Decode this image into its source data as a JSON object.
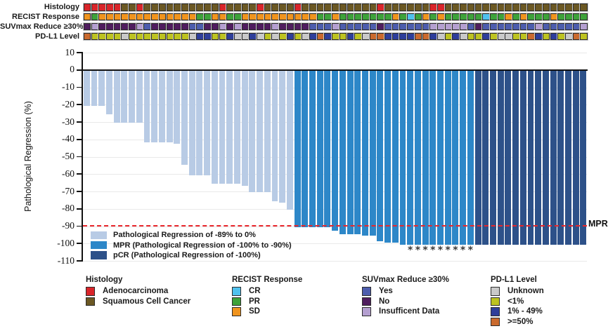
{
  "tracks": {
    "rows": [
      {
        "key": "histology",
        "label": "Histology",
        "values": [
          "A",
          "A",
          "A",
          "A",
          "A",
          "S",
          "S",
          "A",
          "S",
          "S",
          "S",
          "S",
          "S",
          "S",
          "S",
          "S",
          "S",
          "S",
          "A",
          "S",
          "S",
          "S",
          "S",
          "A",
          "S",
          "S",
          "S",
          "S",
          "A",
          "S",
          "S",
          "S",
          "S",
          "S",
          "S",
          "S",
          "S",
          "S",
          "S",
          "A",
          "S",
          "S",
          "S",
          "S",
          "S",
          "S",
          "A",
          "A",
          "S",
          "S",
          "S",
          "S",
          "S",
          "S",
          "S",
          "S",
          "S",
          "S",
          "S",
          "S",
          "S",
          "S",
          "S",
          "S",
          "S",
          "S",
          "S"
        ]
      },
      {
        "key": "recist",
        "label": "RECIST Response",
        "values": [
          "SD",
          "PR",
          "SD",
          "SD",
          "SD",
          "SD",
          "SD",
          "SD",
          "SD",
          "SD",
          "SD",
          "SD",
          "SD",
          "SD",
          "SD",
          "PR",
          "PR",
          "SD",
          "SD",
          "PR",
          "PR",
          "SD",
          "SD",
          "SD",
          "SD",
          "SD",
          "SD",
          "SD",
          "SD",
          "SD",
          "SD",
          "PR",
          "PR",
          "SD",
          "PR",
          "PR",
          "PR",
          "PR",
          "PR",
          "PR",
          "PR",
          "SD",
          "PR",
          "CR",
          "PR",
          "SD",
          "PR",
          "SD",
          "PR",
          "PR",
          "PR",
          "PR",
          "PR",
          "CR",
          "PR",
          "PR",
          "SD",
          "PR",
          "SD",
          "PR",
          "PR",
          "PR",
          "SD",
          "PR",
          "PR",
          "PR",
          "PR"
        ]
      },
      {
        "key": "suv",
        "label": "SUVmax Reduce ≥30%",
        "values": [
          "N",
          "I",
          "N",
          "N",
          "N",
          "N",
          "N",
          "I",
          "Y",
          "N",
          "N",
          "N",
          "N",
          "N",
          "Y",
          "Y",
          "N",
          "N",
          "I",
          "N",
          "I",
          "N",
          "N",
          "N",
          "N",
          "I",
          "N",
          "N",
          "N",
          "N",
          "Y",
          "Y",
          "Y",
          "I",
          "Y",
          "Y",
          "Y",
          "Y",
          "Y",
          "N",
          "Y",
          "Y",
          "Y",
          "Y",
          "Y",
          "Y",
          "I",
          "I",
          "I",
          "I",
          "I",
          "Y",
          "N",
          "Y",
          "Y",
          "Y",
          "Y",
          "Y",
          "Y",
          "Y",
          "I",
          "Y",
          "Y",
          "Y",
          "Y",
          "Y",
          "I"
        ]
      },
      {
        "key": "pdl1",
        "label": "PD-L1 Level",
        "values": [
          "H",
          "L",
          "L",
          "L",
          "L",
          "U",
          "L",
          "L",
          "L",
          "L",
          "L",
          "L",
          "L",
          "L",
          "U",
          "M",
          "M",
          "L",
          "L",
          "M",
          "U",
          "U",
          "M",
          "U",
          "L",
          "U",
          "L",
          "M",
          "L",
          "U",
          "M",
          "H",
          "M",
          "L",
          "L",
          "M",
          "L",
          "U",
          "H",
          "H",
          "M",
          "M",
          "M",
          "M",
          "H",
          "H",
          "M",
          "U",
          "L",
          "M",
          "U",
          "L",
          "L",
          "M",
          "L",
          "U",
          "U",
          "L",
          "L",
          "H",
          "M",
          "L",
          "M",
          "L",
          "U",
          "H",
          "L"
        ]
      }
    ],
    "palettes": {
      "histology": {
        "A": "#d9252a",
        "S": "#6b5823"
      },
      "recist": {
        "CR": "#4fc1ee",
        "PR": "#3ea23a",
        "SD": "#f0941e"
      },
      "suv": {
        "Y": "#4d5dad",
        "N": "#4f1d5e",
        "I": "#b49fd0"
      },
      "pdl1": {
        "U": "#c9c9c9",
        "L": "#bdc320",
        "M": "#2e3e9a",
        "H": "#ca6a2e"
      }
    }
  },
  "chart_data": {
    "type": "bar",
    "title": "",
    "xlabel": "",
    "ylabel": "Pathological Regression (%)",
    "ylim": [
      -110,
      10
    ],
    "yticks": [
      10,
      0,
      -10,
      -20,
      -30,
      -40,
      -50,
      -60,
      -70,
      -80,
      -90,
      -100,
      -110
    ],
    "grid": "horizontal",
    "series": [
      {
        "name": "Pathological Regression of -89% to 0%",
        "key": "reg",
        "color": "#b8cbe5",
        "values": [
          -20,
          -20,
          -20,
          -25,
          -30,
          -30,
          -30,
          -30,
          -41,
          -41,
          -41,
          -41,
          -42,
          -54,
          -60,
          -60,
          -60,
          -65,
          -65,
          -65,
          -65,
          -66,
          -70,
          -70,
          -70,
          -75,
          -76,
          -80
        ]
      },
      {
        "name": "MPR (Pathological Regression of -100% to -90%)",
        "key": "mpr",
        "color": "#2d87c8",
        "values": [
          -90,
          -90,
          -90,
          -90,
          -90,
          -92,
          -94,
          -94,
          -94,
          -95,
          -95,
          -98,
          -99,
          -99,
          -100,
          -100,
          -100,
          -100,
          -100,
          -100,
          -100,
          -100,
          -100,
          -100
        ]
      },
      {
        "name": "pCR (Pathological Regression of -100%)",
        "key": "pcr",
        "color": "#2d5189",
        "values": [
          -100,
          -100,
          -100,
          -100,
          -100,
          -100,
          -100,
          -100,
          -100,
          -100,
          -100,
          -100,
          -100,
          -100,
          -100
        ]
      }
    ],
    "asterisk_marker": "*",
    "asterisk_bar_indices": [
      44,
      45,
      46,
      47,
      48,
      49,
      50,
      51,
      52
    ],
    "mpr_line": {
      "value": -90,
      "label": "MPR",
      "color": "#e8262b"
    }
  },
  "in_plot_legend": {
    "items": [
      {
        "label": "Pathological Regression of -89% to 0%",
        "color": "#b8cbe5"
      },
      {
        "label": "MPR (Pathological Regression of -100% to -90%)",
        "color": "#2d87c8"
      },
      {
        "label": "pCR (Pathological Regression of -100%)",
        "color": "#2d5189"
      }
    ]
  },
  "bottom_legends": [
    {
      "title": "Histology",
      "items": [
        {
          "label": "Adenocarcinoma",
          "color": "#d9252a"
        },
        {
          "label": "Squamous Cell Cancer",
          "color": "#6b5823"
        }
      ]
    },
    {
      "title": "RECIST Response",
      "items": [
        {
          "label": "CR",
          "color": "#4fc1ee"
        },
        {
          "label": "PR",
          "color": "#3ea23a"
        },
        {
          "label": "SD",
          "color": "#f0941e"
        }
      ]
    },
    {
      "title": "SUVmax Reduce ≥30%",
      "items": [
        {
          "label": "Yes",
          "color": "#4d5dad"
        },
        {
          "label": "No",
          "color": "#4f1d5e"
        },
        {
          "label": "Insufficent Data",
          "color": "#b49fd0"
        }
      ]
    },
    {
      "title": "PD-L1 Level",
      "items": [
        {
          "label": "Unknown",
          "color": "#c9c9c9"
        },
        {
          "label": "<1%",
          "color": "#bdc320"
        },
        {
          "label": "1% - 49%",
          "color": "#2e3e9a"
        },
        {
          "label": ">=50%",
          "color": "#ca6a2e"
        }
      ]
    }
  ]
}
